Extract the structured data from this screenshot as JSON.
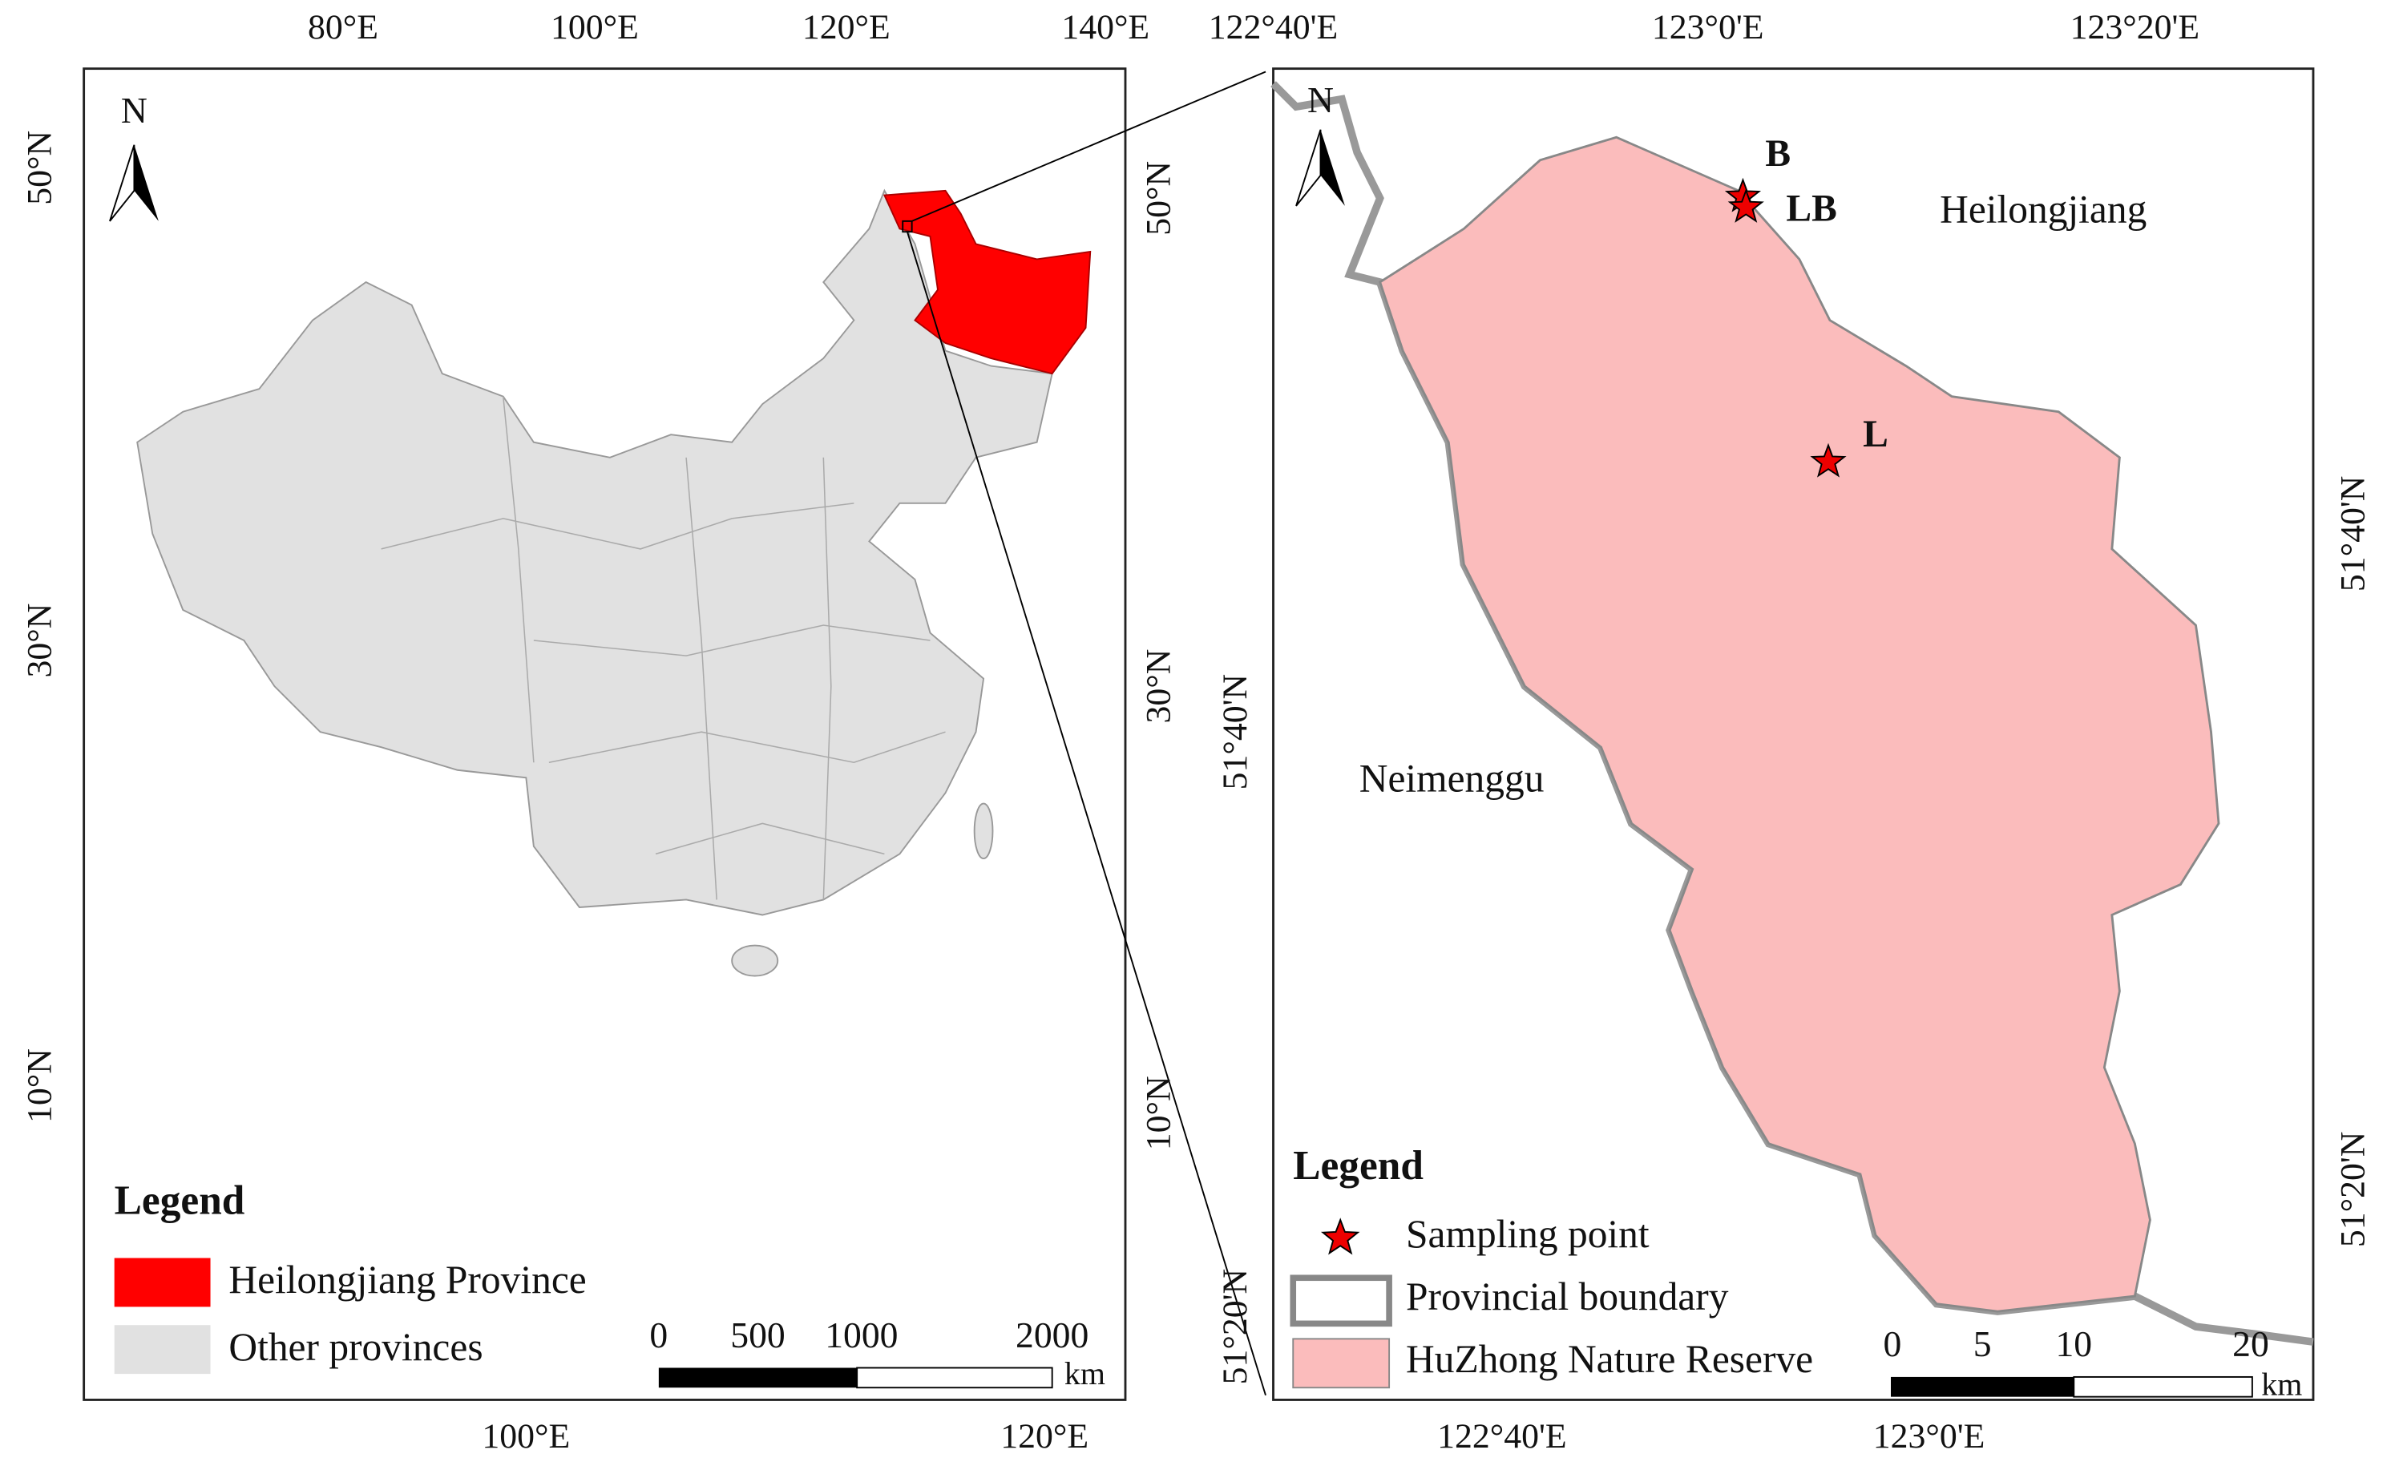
{
  "left_map": {
    "top_ticks": [
      "80°E",
      "100°E",
      "120°E",
      "140°E"
    ],
    "bottom_ticks": [
      "100°E",
      "120°E"
    ],
    "left_ticks": [
      "50°N",
      "30°N",
      "10°N"
    ],
    "right_ticks": [
      "50°N",
      "30°N",
      "10°N"
    ],
    "north": "N",
    "legend": {
      "title": "Legend",
      "items": [
        "Heilongjiang Province",
        "Other provinces"
      ]
    },
    "scale_bar": {
      "labels": [
        "0",
        "500",
        "1000",
        "2000"
      ],
      "unit": "km"
    }
  },
  "right_map": {
    "top_ticks": [
      "122°40'E",
      "123°0'E",
      "123°20'E"
    ],
    "bottom_ticks": [
      "122°40'E",
      "123°0'E"
    ],
    "left_ticks": [
      "51°40'N",
      "51°20'N"
    ],
    "right_ticks": [
      "51°40'N",
      "51°20'N"
    ],
    "north": "N",
    "regions": [
      "Heilongjiang",
      "Neimenggu"
    ],
    "points": [
      "B",
      "LB",
      "L"
    ],
    "legend": {
      "title": "Legend",
      "items": [
        "Sampling point",
        "Provincial boundary",
        "HuZhong Nature Reserve"
      ]
    },
    "scale_bar": {
      "labels": [
        "0",
        "5",
        "10",
        "20"
      ],
      "unit": "km"
    }
  }
}
